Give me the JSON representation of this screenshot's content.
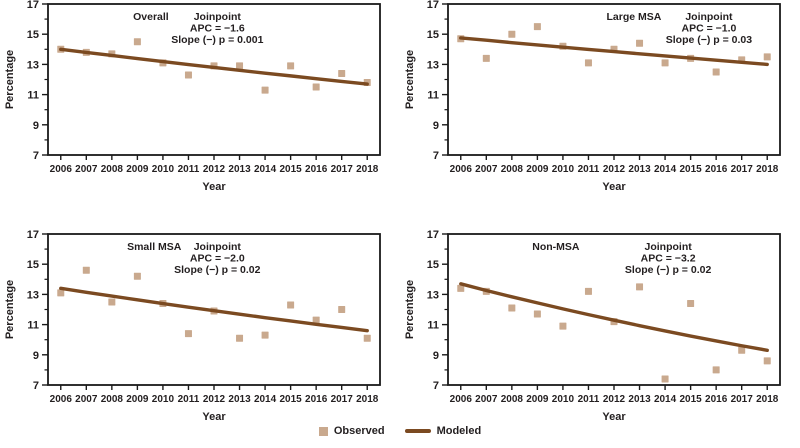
{
  "figure": {
    "legend": {
      "observed_label": "Observed",
      "modeled_label": "Modeled"
    }
  },
  "colors": {
    "observed": "#C9A98E",
    "modeled": "#7B4A21",
    "axis": "#1A1A1A",
    "text": "#231F20",
    "background": "#FFFFFF"
  },
  "chart_data": [
    {
      "type": "scatter",
      "title": "Overall",
      "annotation": [
        "Joinpoint",
        "APC = −1.6",
        "Slope (−) p = 0.001"
      ],
      "xlabel": "Year",
      "ylabel": "Percentage",
      "ylim": [
        7,
        17
      ],
      "yticks": [
        7,
        9,
        11,
        13,
        15,
        17
      ],
      "yticks_minor": [
        8,
        10,
        12,
        14,
        16
      ],
      "x": [
        2006,
        2007,
        2008,
        2009,
        2010,
        2011,
        2012,
        2013,
        2014,
        2015,
        2016,
        2017,
        2018
      ],
      "series": [
        {
          "name": "Observed",
          "style": "scatter",
          "values": [
            14.0,
            13.8,
            13.7,
            14.5,
            13.1,
            12.3,
            12.9,
            12.9,
            11.3,
            12.9,
            11.5,
            12.4,
            11.8
          ]
        },
        {
          "name": "Modeled",
          "style": "line",
          "values": [
            14.0,
            13.79,
            13.59,
            13.39,
            13.19,
            12.99,
            12.8,
            12.61,
            12.42,
            12.24,
            12.05,
            11.87,
            11.7
          ]
        }
      ],
      "layout": {
        "title_x": 0.31,
        "annot_x": 0.51,
        "grid": "off",
        "legend": "shared-bottom"
      }
    },
    {
      "type": "scatter",
      "title": "Large MSA",
      "annotation": [
        "Joinpoint",
        "APC = −1.0",
        "Slope (−) p = 0.03"
      ],
      "xlabel": "Year",
      "ylabel": "Percentage",
      "ylim": [
        7,
        17
      ],
      "yticks": [
        7,
        9,
        11,
        13,
        15,
        17
      ],
      "yticks_minor": [
        8,
        10,
        12,
        14,
        16
      ],
      "x": [
        2006,
        2007,
        2008,
        2009,
        2010,
        2011,
        2012,
        2013,
        2014,
        2015,
        2016,
        2017,
        2018
      ],
      "series": [
        {
          "name": "Observed",
          "style": "scatter",
          "values": [
            14.7,
            13.4,
            15.0,
            15.5,
            14.2,
            13.1,
            14.0,
            14.4,
            13.1,
            13.4,
            12.5,
            13.3,
            13.5
          ]
        },
        {
          "name": "Modeled",
          "style": "line",
          "values": [
            14.75,
            14.6,
            14.44,
            14.29,
            14.14,
            13.99,
            13.85,
            13.7,
            13.56,
            13.42,
            13.28,
            13.14,
            13.0
          ]
        }
      ],
      "layout": {
        "title_x": 0.56,
        "annot_x": 0.786,
        "grid": "off",
        "legend": "shared-bottom"
      }
    },
    {
      "type": "scatter",
      "title": "Small MSA",
      "annotation": [
        "Joinpoint",
        "APC = −2.0",
        "Slope (−) p = 0.02"
      ],
      "xlabel": "Year",
      "ylabel": "Percentage",
      "ylim": [
        7,
        17
      ],
      "yticks": [
        7,
        9,
        11,
        13,
        15,
        17
      ],
      "yticks_minor": [
        8,
        10,
        12,
        14,
        16
      ],
      "x": [
        2006,
        2007,
        2008,
        2009,
        2010,
        2011,
        2012,
        2013,
        2014,
        2015,
        2016,
        2017,
        2018
      ],
      "series": [
        {
          "name": "Observed",
          "style": "scatter",
          "values": [
            13.1,
            14.6,
            12.5,
            14.2,
            12.4,
            10.4,
            11.9,
            10.1,
            10.3,
            12.3,
            11.3,
            12.0,
            10.1
          ]
        },
        {
          "name": "Modeled",
          "style": "line",
          "values": [
            13.4,
            13.14,
            12.89,
            12.64,
            12.39,
            12.15,
            11.92,
            11.69,
            11.46,
            11.24,
            11.02,
            10.81,
            10.6
          ]
        }
      ],
      "layout": {
        "title_x": 0.32,
        "annot_x": 0.51,
        "grid": "off",
        "legend": "shared-bottom"
      }
    },
    {
      "type": "scatter",
      "title": "Non-MSA",
      "annotation": [
        "Joinpoint",
        "APC = −3.2",
        "Slope (−) p = 0.02"
      ],
      "xlabel": "Year",
      "ylabel": "Percentage",
      "ylim": [
        7,
        17
      ],
      "yticks": [
        7,
        9,
        11,
        13,
        15,
        17
      ],
      "yticks_minor": [
        8,
        10,
        12,
        14,
        16
      ],
      "x": [
        2006,
        2007,
        2008,
        2009,
        2010,
        2011,
        2012,
        2013,
        2014,
        2015,
        2016,
        2017,
        2018
      ],
      "series": [
        {
          "name": "Observed",
          "style": "scatter",
          "values": [
            13.4,
            13.2,
            12.1,
            11.7,
            10.9,
            13.2,
            11.2,
            13.5,
            7.4,
            12.4,
            8.0,
            9.3,
            8.6
          ]
        },
        {
          "name": "Modeled",
          "style": "line",
          "values": [
            13.7,
            13.26,
            12.84,
            12.44,
            12.04,
            11.66,
            11.29,
            10.93,
            10.58,
            10.24,
            9.92,
            9.6,
            9.3
          ]
        }
      ],
      "layout": {
        "title_x": 0.325,
        "annot_x": 0.663,
        "grid": "off",
        "legend": "shared-bottom"
      }
    }
  ]
}
